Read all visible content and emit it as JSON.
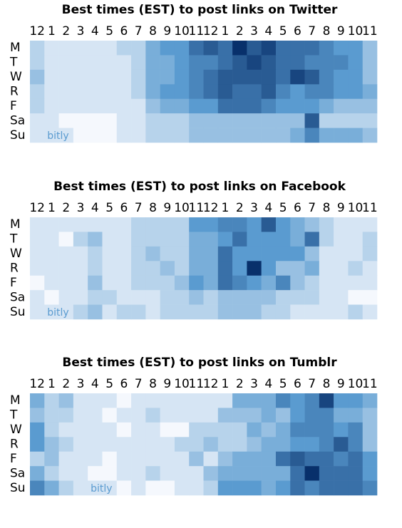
{
  "chart_data": [
    {
      "type": "heatmap",
      "title": "Best times (EST) to post links on Twitter",
      "watermark": "bitly",
      "x": [
        "12",
        "1",
        "2",
        "3",
        "4",
        "5",
        "6",
        "7",
        "8",
        "9",
        "10",
        "11",
        "12",
        "1",
        "2",
        "3",
        "4",
        "5",
        "6",
        "7",
        "8",
        "9",
        "10",
        "11"
      ],
      "y": [
        "M",
        "T",
        "W",
        "R",
        "F",
        "Sa",
        "Su"
      ],
      "colors": [
        "#f5f8fd",
        "#5a9bd0",
        "#08306b"
      ],
      "zlim": [
        0,
        10
      ],
      "values": [
        [
          2,
          1,
          1,
          1,
          1,
          1,
          2,
          2,
          4,
          5,
          5,
          7,
          8,
          7,
          10,
          8,
          9,
          7,
          7,
          7,
          6,
          5,
          5,
          3
        ],
        [
          2,
          1,
          1,
          1,
          1,
          1,
          1,
          2,
          4,
          4,
          5,
          6,
          6,
          7,
          8,
          9,
          8,
          7,
          7,
          6,
          6,
          6,
          5,
          3
        ],
        [
          3,
          1,
          1,
          1,
          1,
          1,
          1,
          2,
          4,
          4,
          5,
          6,
          7,
          8,
          8,
          8,
          8,
          7,
          9,
          8,
          6,
          5,
          5,
          3
        ],
        [
          2,
          1,
          1,
          1,
          1,
          1,
          1,
          2,
          4,
          5,
          5,
          6,
          7,
          8,
          7,
          7,
          8,
          6,
          5,
          6,
          6,
          5,
          5,
          4
        ],
        [
          2,
          1,
          1,
          1,
          1,
          1,
          1,
          1,
          3,
          4,
          4,
          5,
          5,
          7,
          7,
          7,
          6,
          5,
          5,
          5,
          4,
          3,
          3,
          3
        ],
        [
          1,
          1,
          0,
          0,
          0,
          0,
          1,
          1,
          2,
          2,
          2,
          3,
          3,
          3,
          3,
          3,
          3,
          3,
          3,
          8,
          2,
          2,
          2,
          2
        ],
        [
          1,
          1,
          1,
          0,
          0,
          0,
          1,
          1,
          2,
          2,
          2,
          3,
          3,
          3,
          3,
          3,
          3,
          3,
          4,
          6,
          4,
          4,
          4,
          3
        ]
      ]
    },
    {
      "type": "heatmap",
      "title": "Best times (EST) to post links on Facebook",
      "watermark": "bitly",
      "x": [
        "12",
        "1",
        "2",
        "3",
        "4",
        "5",
        "6",
        "7",
        "8",
        "9",
        "10",
        "11",
        "12",
        "1",
        "2",
        "3",
        "4",
        "5",
        "6",
        "7",
        "8",
        "9",
        "10",
        "11"
      ],
      "y": [
        "M",
        "T",
        "W",
        "R",
        "F",
        "Sa",
        "Su"
      ],
      "colors": [
        "#f5f8fd",
        "#5a9bd0",
        "#08306b"
      ],
      "zlim": [
        0,
        10
      ],
      "values": [
        [
          1,
          1,
          1,
          1,
          1,
          1,
          1,
          2,
          2,
          2,
          2,
          5,
          5,
          6,
          6,
          5,
          8,
          5,
          4,
          3,
          2,
          1,
          1,
          1
        ],
        [
          1,
          1,
          0,
          2,
          3,
          1,
          1,
          2,
          2,
          2,
          2,
          4,
          4,
          5,
          7,
          5,
          5,
          5,
          4,
          7,
          2,
          1,
          1,
          2
        ],
        [
          1,
          1,
          1,
          1,
          2,
          1,
          1,
          2,
          3,
          2,
          2,
          4,
          4,
          7,
          5,
          5,
          5,
          5,
          5,
          3,
          1,
          1,
          1,
          2
        ],
        [
          1,
          1,
          1,
          1,
          2,
          1,
          1,
          2,
          2,
          3,
          2,
          4,
          4,
          7,
          5,
          10,
          5,
          3,
          3,
          4,
          1,
          1,
          2,
          1
        ],
        [
          0,
          1,
          1,
          1,
          3,
          1,
          1,
          2,
          2,
          2,
          3,
          5,
          4,
          7,
          6,
          5,
          4,
          6,
          3,
          2,
          1,
          1,
          1,
          1
        ],
        [
          1,
          0,
          1,
          1,
          2,
          2,
          1,
          1,
          1,
          2,
          2,
          3,
          2,
          3,
          3,
          3,
          3,
          2,
          2,
          2,
          1,
          1,
          0,
          0
        ],
        [
          1,
          1,
          1,
          2,
          3,
          1,
          2,
          2,
          1,
          2,
          2,
          2,
          2,
          3,
          3,
          3,
          2,
          2,
          1,
          1,
          1,
          1,
          2,
          1
        ]
      ]
    },
    {
      "type": "heatmap",
      "title": "Best times (EST) to post links on Tumblr",
      "watermark": "bitly",
      "x": [
        "12",
        "1",
        "2",
        "3",
        "4",
        "5",
        "6",
        "7",
        "8",
        "9",
        "10",
        "11",
        "12",
        "1",
        "2",
        "3",
        "4",
        "5",
        "6",
        "7",
        "8",
        "9",
        "10",
        "11"
      ],
      "y": [
        "M",
        "T",
        "W",
        "R",
        "F",
        "Sa",
        "Su"
      ],
      "colors": [
        "#f5f8fd",
        "#5a9bd0",
        "#08306b"
      ],
      "zlim": [
        0,
        10
      ],
      "values": [
        [
          4,
          2,
          3,
          1,
          1,
          1,
          0,
          1,
          1,
          1,
          1,
          1,
          1,
          1,
          4,
          4,
          4,
          6,
          5,
          6,
          9,
          5,
          5,
          4
        ],
        [
          3,
          2,
          2,
          1,
          1,
          0,
          1,
          1,
          2,
          1,
          1,
          1,
          1,
          3,
          3,
          3,
          4,
          3,
          5,
          6,
          6,
          4,
          4,
          3
        ],
        [
          5,
          2,
          1,
          1,
          1,
          1,
          0,
          1,
          1,
          0,
          0,
          2,
          2,
          2,
          2,
          4,
          3,
          4,
          6,
          6,
          6,
          5,
          6,
          3
        ],
        [
          5,
          3,
          2,
          1,
          1,
          1,
          1,
          1,
          1,
          1,
          2,
          2,
          3,
          2,
          2,
          3,
          4,
          4,
          5,
          5,
          6,
          8,
          6,
          3
        ],
        [
          2,
          3,
          1,
          1,
          1,
          0,
          1,
          1,
          1,
          1,
          1,
          3,
          1,
          3,
          4,
          4,
          4,
          7,
          8,
          7,
          7,
          6,
          7,
          5
        ],
        [
          4,
          2,
          1,
          1,
          0,
          0,
          1,
          1,
          2,
          1,
          1,
          1,
          3,
          4,
          4,
          4,
          4,
          4,
          7,
          10,
          7,
          7,
          7,
          5
        ],
        [
          6,
          4,
          2,
          1,
          1,
          1,
          0,
          1,
          0,
          0,
          1,
          1,
          2,
          5,
          5,
          5,
          4,
          5,
          7,
          6,
          7,
          7,
          7,
          6
        ]
      ]
    }
  ]
}
